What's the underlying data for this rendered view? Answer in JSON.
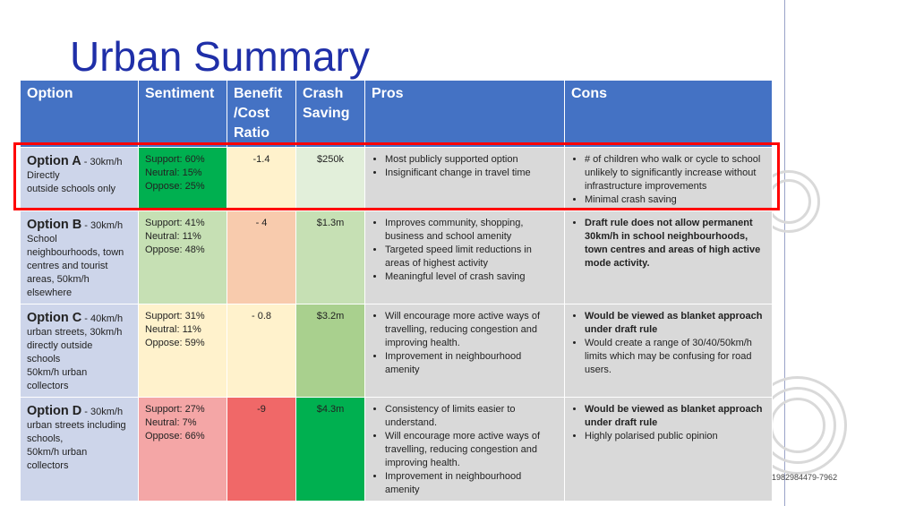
{
  "title": "Urban Summary",
  "colors": {
    "title": "#1f2fa8",
    "header_bg": "#4472c4",
    "option_bg": "#cdd5ea",
    "pros_cons_bg": "#d9d9d9",
    "highlight": "#ff0000"
  },
  "headers": {
    "option": "Option",
    "sentiment": "Sentiment",
    "bcr_line1": "Benefit",
    "bcr_line2": "/Cost",
    "bcr_line3": "Ratio",
    "crash_line1": "Crash",
    "crash_line2": "Saving",
    "pros": "Pros",
    "cons": "Cons"
  },
  "rows": [
    {
      "name": "Option A",
      "short": " - 30km/h",
      "desc": [
        "Directly",
        "outside  schools only"
      ],
      "support": "Support: 60%",
      "neutral": "Neutral: 15%",
      "oppose": "Oppose: 25%",
      "sentiment_color": "#00b050",
      "bcr": "-1.4",
      "bcr_color": "#fff2cc",
      "crash": "$250k",
      "crash_color": "#e2efda",
      "pros": [
        {
          "text": "Most publicly supported option",
          "bold": false
        },
        {
          "text": "Insignificant change in travel time",
          "bold": false
        }
      ],
      "cons": [
        {
          "text": "# of children who walk or cycle to school unlikely to significantly increase without infrastructure improvements",
          "bold": false
        },
        {
          "text": "Minimal crash saving",
          "bold": false
        }
      ]
    },
    {
      "name": "Option B",
      "short": " - 30km/h",
      "desc": [
        "School",
        "neighbourhoods, town",
        "centres and tourist",
        "areas, 50km/h",
        "elsewhere"
      ],
      "support": "Support: 41%",
      "neutral": "Neutral: 11%",
      "oppose": "Oppose: 48%",
      "sentiment_color": "#c6e0b4",
      "bcr": "- 4",
      "bcr_color": "#f8cbad",
      "crash": "$1.3m",
      "crash_color": "#c6e0b4",
      "pros": [
        {
          "text": "Improves community, shopping, business and school amenity",
          "bold": false
        },
        {
          "text": "Targeted speed limit reductions in areas of highest activity",
          "bold": false
        },
        {
          "text": "Meaningful level of crash saving",
          "bold": false
        }
      ],
      "cons": [
        {
          "text": "Draft rule does not allow permanent 30km/h in school neighbourhoods, town centres and areas of high active mode activity.",
          "bold": true
        }
      ]
    },
    {
      "name": "Option C",
      "short": " - 40km/h",
      "desc": [
        "urban streets, 30km/h",
        "directly outside",
        "schools",
        "50km/h urban",
        "collectors"
      ],
      "support": "Support: 31%",
      "neutral": "Neutral: 11%",
      "oppose": "Oppose: 59%",
      "sentiment_color": "#fff2cc",
      "bcr": "- 0.8",
      "bcr_color": "#fff2cc",
      "crash": "$3.2m",
      "crash_color": "#a9d08e",
      "pros": [
        {
          "text": "Will encourage more active ways of travelling, reducing congestion and improving health.",
          "bold": false
        },
        {
          "text": "Improvement in neighbourhood amenity",
          "bold": false
        }
      ],
      "cons": [
        {
          "text": "Would be viewed as blanket approach under draft rule",
          "bold": true
        },
        {
          "text": "Would create a range of 30/40/50km/h limits which may be confusing for road users.",
          "bold": false
        }
      ]
    },
    {
      "name": "Option D",
      "short": " - 30km/h",
      "desc": [
        "urban streets including",
        "schools,",
        "50km/h urban",
        "collectors"
      ],
      "support": "Support: 27%",
      "neutral": "Neutral: 7%",
      "oppose": "Oppose: 66%",
      "sentiment_color": "#f4a6a6",
      "bcr": "-9",
      "bcr_color": "#f06868",
      "crash": "$4.3m",
      "crash_color": "#00b050",
      "pros": [
        {
          "text": "Consistency of limits easier to understand.",
          "bold": false
        },
        {
          "text": "Will encourage more active ways of travelling, reducing congestion and improving health.",
          "bold": false
        },
        {
          "text": "Improvement in neighbourhood amenity",
          "bold": false
        }
      ],
      "cons": [
        {
          "text": "Would be viewed as blanket approach under draft rule",
          "bold": true
        },
        {
          "text": "Highly polarised public opinion",
          "bold": false
        }
      ]
    }
  ],
  "ref_code": "1982984479-7962"
}
